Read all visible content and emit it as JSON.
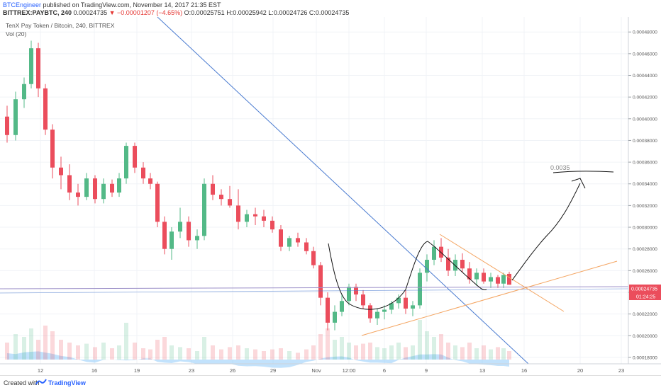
{
  "header": {
    "author": "BTCEngineer",
    "published_text": "published on TradingView.com, November 14, 2017 21:35 EST",
    "symbol": "BITTREX:PAYBTC, 240",
    "price": "0.00024735",
    "change": "▼ −0.00001207 (−4.65%)",
    "open_label": "O:",
    "open": "0.00025751",
    "high_label": "H:",
    "high": "0.00025942",
    "low_label": "L:",
    "low": "0.00024726",
    "close_label": "C:",
    "close": "0.00024735"
  },
  "chart_data": {
    "type": "candlestick",
    "title": "TenX Pay Token / Bitcoin, 240, BITTREX",
    "indicator": "Vol (20)",
    "x_tick_labels": [
      "12",
      "16",
      "19",
      "23",
      "26",
      "29",
      "Nov",
      "12:00",
      "6",
      "9",
      "13",
      "16",
      "20",
      "23"
    ],
    "y_tick_labels": [
      "0.00048000",
      "0.00046000",
      "0.00044000",
      "0.00042000",
      "0.00040000",
      "0.00038000",
      "0.00036000",
      "0.00034000",
      "0.00032000",
      "0.00030000",
      "0.00028000",
      "0.00026000",
      "0.00024000",
      "0.00022000",
      "0.00020000",
      "0.00018000"
    ],
    "ylim": [
      0.000178,
      0.000486
    ],
    "last_price_label": "0.00024735",
    "countdown_label": "01:24:25",
    "annotation_target": "0.0035",
    "colors": {
      "up": "#53b987",
      "down": "#eb4d5c",
      "volume": "#90caf9",
      "trendline": "#4a7bd0",
      "wedge": "#f4a460",
      "hline": "#9b8fc8",
      "drawing": "#111111"
    },
    "candles": [
      {
        "x": 10,
        "o": 0.000402,
        "h": 0.000412,
        "l": 0.000378,
        "c": 0.000385
      },
      {
        "x": 22,
        "o": 0.000385,
        "h": 0.000425,
        "l": 0.00038,
        "c": 0.000418
      },
      {
        "x": 34,
        "o": 0.000418,
        "h": 0.000438,
        "l": 0.00041,
        "c": 0.000432
      },
      {
        "x": 44,
        "o": 0.000432,
        "h": 0.000472,
        "l": 0.000428,
        "c": 0.000465
      },
      {
        "x": 54,
        "o": 0.000465,
        "h": 0.00047,
        "l": 0.00042,
        "c": 0.000428
      },
      {
        "x": 64,
        "o": 0.000428,
        "h": 0.000432,
        "l": 0.000385,
        "c": 0.00039
      },
      {
        "x": 74,
        "o": 0.00039,
        "h": 0.000395,
        "l": 0.000345,
        "c": 0.000355
      },
      {
        "x": 86,
        "o": 0.000355,
        "h": 0.000365,
        "l": 0.000335,
        "c": 0.000348
      },
      {
        "x": 98,
        "o": 0.000348,
        "h": 0.000358,
        "l": 0.000325,
        "c": 0.000332
      },
      {
        "x": 110,
        "o": 0.000332,
        "h": 0.00034,
        "l": 0.00032,
        "c": 0.000328
      },
      {
        "x": 122,
        "o": 0.000328,
        "h": 0.00035,
        "l": 0.000325,
        "c": 0.000345
      },
      {
        "x": 134,
        "o": 0.000345,
        "h": 0.000348,
        "l": 0.000322,
        "c": 0.000326
      },
      {
        "x": 146,
        "o": 0.000326,
        "h": 0.000345,
        "l": 0.000322,
        "c": 0.00034
      },
      {
        "x": 158,
        "o": 0.00034,
        "h": 0.000344,
        "l": 0.000328,
        "c": 0.000332
      },
      {
        "x": 168,
        "o": 0.000332,
        "h": 0.00035,
        "l": 0.000328,
        "c": 0.000345
      },
      {
        "x": 178,
        "o": 0.000345,
        "h": 0.000378,
        "l": 0.00034,
        "c": 0.000375
      },
      {
        "x": 190,
        "o": 0.000375,
        "h": 0.000378,
        "l": 0.00035,
        "c": 0.000355
      },
      {
        "x": 202,
        "o": 0.000355,
        "h": 0.00036,
        "l": 0.00034,
        "c": 0.000345
      },
      {
        "x": 212,
        "o": 0.000345,
        "h": 0.00035,
        "l": 0.000335,
        "c": 0.00034
      },
      {
        "x": 222,
        "o": 0.00034,
        "h": 0.000342,
        "l": 0.0003,
        "c": 0.000305
      },
      {
        "x": 232,
        "o": 0.000305,
        "h": 0.00031,
        "l": 0.000275,
        "c": 0.00028
      },
      {
        "x": 242,
        "o": 0.00028,
        "h": 0.0003,
        "l": 0.00027,
        "c": 0.000296
      },
      {
        "x": 254,
        "o": 0.000296,
        "h": 0.000318,
        "l": 0.00029,
        "c": 0.000305
      },
      {
        "x": 266,
        "o": 0.000305,
        "h": 0.00031,
        "l": 0.000282,
        "c": 0.000288
      },
      {
        "x": 278,
        "o": 0.000288,
        "h": 0.000298,
        "l": 0.00028,
        "c": 0.000292
      },
      {
        "x": 288,
        "o": 0.000292,
        "h": 0.000345,
        "l": 0.000288,
        "c": 0.00034
      },
      {
        "x": 300,
        "o": 0.00034,
        "h": 0.000348,
        "l": 0.000325,
        "c": 0.00033
      },
      {
        "x": 312,
        "o": 0.00033,
        "h": 0.000335,
        "l": 0.00032,
        "c": 0.000326
      },
      {
        "x": 324,
        "o": 0.000326,
        "h": 0.000338,
        "l": 0.000318,
        "c": 0.00032
      },
      {
        "x": 336,
        "o": 0.00032,
        "h": 0.000335,
        "l": 0.000298,
        "c": 0.000305
      },
      {
        "x": 348,
        "o": 0.000305,
        "h": 0.000316,
        "l": 0.0003,
        "c": 0.000312
      },
      {
        "x": 360,
        "o": 0.000312,
        "h": 0.000318,
        "l": 0.000302,
        "c": 0.00031
      },
      {
        "x": 372,
        "o": 0.00031,
        "h": 0.000316,
        "l": 0.0003,
        "c": 0.000306
      },
      {
        "x": 384,
        "o": 0.000306,
        "h": 0.00031,
        "l": 0.000295,
        "c": 0.000298
      },
      {
        "x": 396,
        "o": 0.000298,
        "h": 0.000302,
        "l": 0.000278,
        "c": 0.000282
      },
      {
        "x": 408,
        "o": 0.000282,
        "h": 0.000292,
        "l": 0.000278,
        "c": 0.00029
      },
      {
        "x": 420,
        "o": 0.00029,
        "h": 0.000295,
        "l": 0.000282,
        "c": 0.000286
      },
      {
        "x": 432,
        "o": 0.000286,
        "h": 0.00029,
        "l": 0.000275,
        "c": 0.000278
      },
      {
        "x": 442,
        "o": 0.000278,
        "h": 0.000282,
        "l": 0.000262,
        "c": 0.000265
      },
      {
        "x": 452,
        "o": 0.000265,
        "h": 0.000268,
        "l": 0.000228,
        "c": 0.000235
      },
      {
        "x": 462,
        "o": 0.000235,
        "h": 0.00024,
        "l": 0.000205,
        "c": 0.000212
      },
      {
        "x": 472,
        "o": 0.000212,
        "h": 0.000228,
        "l": 0.000205,
        "c": 0.000222
      },
      {
        "x": 482,
        "o": 0.000222,
        "h": 0.000238,
        "l": 0.000218,
        "c": 0.000232
      },
      {
        "x": 492,
        "o": 0.000232,
        "h": 0.000248,
        "l": 0.000228,
        "c": 0.000245
      },
      {
        "x": 502,
        "o": 0.000245,
        "h": 0.000248,
        "l": 0.000232,
        "c": 0.000238
      },
      {
        "x": 512,
        "o": 0.000238,
        "h": 0.000242,
        "l": 0.000225,
        "c": 0.000228
      },
      {
        "x": 522,
        "o": 0.000228,
        "h": 0.00023,
        "l": 0.000212,
        "c": 0.000216
      },
      {
        "x": 532,
        "o": 0.000216,
        "h": 0.000225,
        "l": 0.00021,
        "c": 0.000222
      },
      {
        "x": 542,
        "o": 0.000222,
        "h": 0.000228,
        "l": 0.000215,
        "c": 0.000224
      },
      {
        "x": 552,
        "o": 0.000224,
        "h": 0.000232,
        "l": 0.00022,
        "c": 0.00023
      },
      {
        "x": 562,
        "o": 0.00023,
        "h": 0.000238,
        "l": 0.000225,
        "c": 0.000235
      },
      {
        "x": 572,
        "o": 0.000235,
        "h": 0.000242,
        "l": 0.00022,
        "c": 0.000225
      },
      {
        "x": 582,
        "o": 0.000225,
        "h": 0.000232,
        "l": 0.000218,
        "c": 0.000228
      },
      {
        "x": 592,
        "o": 0.000228,
        "h": 0.000262,
        "l": 0.000225,
        "c": 0.000258
      },
      {
        "x": 602,
        "o": 0.000258,
        "h": 0.000275,
        "l": 0.00025,
        "c": 0.00027
      },
      {
        "x": 612,
        "o": 0.00027,
        "h": 0.000288,
        "l": 0.000265,
        "c": 0.000282
      },
      {
        "x": 622,
        "o": 0.000282,
        "h": 0.00029,
        "l": 0.000268,
        "c": 0.000272
      },
      {
        "x": 632,
        "o": 0.000272,
        "h": 0.00028,
        "l": 0.000255,
        "c": 0.00026
      },
      {
        "x": 642,
        "o": 0.00026,
        "h": 0.000275,
        "l": 0.000255,
        "c": 0.00027
      },
      {
        "x": 652,
        "o": 0.00027,
        "h": 0.000276,
        "l": 0.000258,
        "c": 0.000262
      },
      {
        "x": 662,
        "o": 0.000262,
        "h": 0.000268,
        "l": 0.000248,
        "c": 0.000252
      },
      {
        "x": 672,
        "o": 0.000252,
        "h": 0.000262,
        "l": 0.000246,
        "c": 0.000258
      },
      {
        "x": 682,
        "o": 0.000258,
        "h": 0.000262,
        "l": 0.000248,
        "c": 0.00025
      },
      {
        "x": 692,
        "o": 0.00025,
        "h": 0.000258,
        "l": 0.000244,
        "c": 0.000254
      },
      {
        "x": 702,
        "o": 0.000254,
        "h": 0.000256,
        "l": 0.000244,
        "c": 0.000248
      },
      {
        "x": 710,
        "o": 0.000248,
        "h": 0.000258,
        "l": 0.000244,
        "c": 0.000256
      },
      {
        "x": 718,
        "o": 0.000257,
        "h": 0.000259,
        "l": 0.000247,
        "c": 0.000247
      }
    ],
    "volume": [
      {
        "x": 10,
        "v": 0.3
      },
      {
        "x": 22,
        "v": 0.45
      },
      {
        "x": 34,
        "v": 0.4
      },
      {
        "x": 44,
        "v": 0.55
      },
      {
        "x": 54,
        "v": 0.35
      },
      {
        "x": 64,
        "v": 0.6
      },
      {
        "x": 74,
        "v": 0.5
      },
      {
        "x": 86,
        "v": 0.35
      },
      {
        "x": 98,
        "v": 0.3
      },
      {
        "x": 110,
        "v": 0.25
      },
      {
        "x": 122,
        "v": 0.28
      },
      {
        "x": 134,
        "v": 0.22
      },
      {
        "x": 146,
        "v": 0.3
      },
      {
        "x": 158,
        "v": 0.2
      },
      {
        "x": 168,
        "v": 0.25
      },
      {
        "x": 178,
        "v": 0.65
      },
      {
        "x": 190,
        "v": 0.3
      },
      {
        "x": 202,
        "v": 0.2
      },
      {
        "x": 212,
        "v": 0.18
      },
      {
        "x": 222,
        "v": 0.35
      },
      {
        "x": 232,
        "v": 0.4
      },
      {
        "x": 242,
        "v": 0.25
      },
      {
        "x": 254,
        "v": 0.22
      },
      {
        "x": 266,
        "v": 0.2
      },
      {
        "x": 278,
        "v": 0.15
      },
      {
        "x": 288,
        "v": 0.4
      },
      {
        "x": 300,
        "v": 0.25
      },
      {
        "x": 312,
        "v": 0.18
      },
      {
        "x": 324,
        "v": 0.22
      },
      {
        "x": 336,
        "v": 0.25
      },
      {
        "x": 348,
        "v": 0.2
      },
      {
        "x": 360,
        "v": 0.18
      },
      {
        "x": 372,
        "v": 0.15
      },
      {
        "x": 384,
        "v": 0.18
      },
      {
        "x": 396,
        "v": 0.2
      },
      {
        "x": 408,
        "v": 0.15
      },
      {
        "x": 420,
        "v": 0.12
      },
      {
        "x": 432,
        "v": 0.18
      },
      {
        "x": 442,
        "v": 0.25
      },
      {
        "x": 452,
        "v": 0.45
      },
      {
        "x": 462,
        "v": 0.55
      },
      {
        "x": 472,
        "v": 0.35
      },
      {
        "x": 482,
        "v": 0.4
      },
      {
        "x": 492,
        "v": 0.3
      },
      {
        "x": 502,
        "v": 0.25
      },
      {
        "x": 512,
        "v": 0.28
      },
      {
        "x": 522,
        "v": 0.3
      },
      {
        "x": 532,
        "v": 0.22
      },
      {
        "x": 542,
        "v": 0.2
      },
      {
        "x": 552,
        "v": 0.25
      },
      {
        "x": 562,
        "v": 0.3
      },
      {
        "x": 572,
        "v": 0.22
      },
      {
        "x": 582,
        "v": 0.25
      },
      {
        "x": 592,
        "v": 0.7
      },
      {
        "x": 602,
        "v": 0.5
      },
      {
        "x": 612,
        "v": 0.4
      },
      {
        "x": 622,
        "v": 0.45
      },
      {
        "x": 632,
        "v": 0.3
      },
      {
        "x": 642,
        "v": 0.25
      },
      {
        "x": 652,
        "v": 0.22
      },
      {
        "x": 662,
        "v": 0.3
      },
      {
        "x": 672,
        "v": 0.2
      },
      {
        "x": 682,
        "v": 0.25
      },
      {
        "x": 692,
        "v": 0.18
      },
      {
        "x": 702,
        "v": 0.22
      },
      {
        "x": 710,
        "v": 0.2
      },
      {
        "x": 718,
        "v": 0.15
      }
    ]
  },
  "footer": {
    "created_with": "Created with",
    "brand": "TradingView"
  }
}
